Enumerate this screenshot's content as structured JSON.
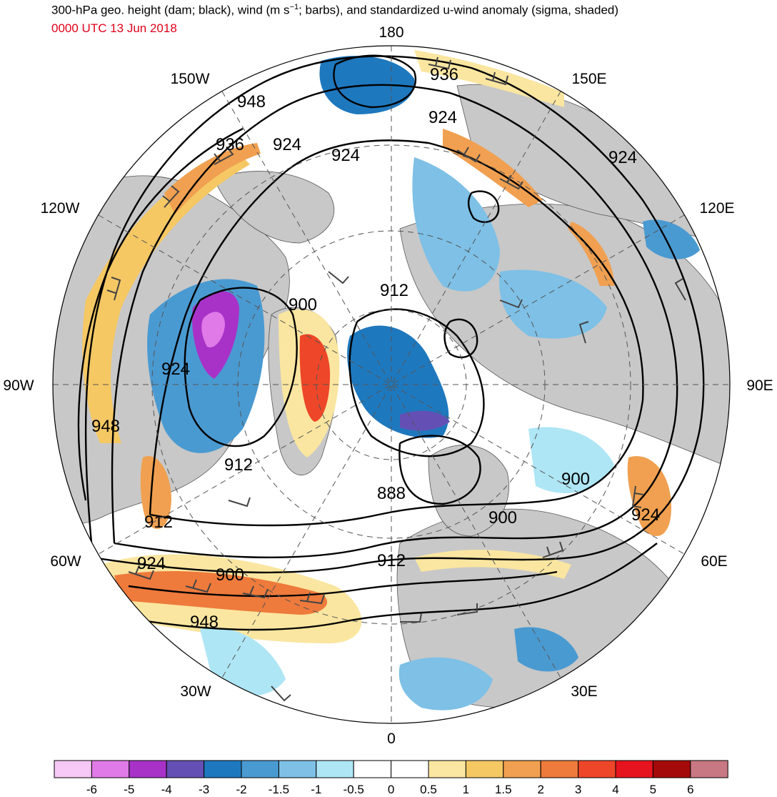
{
  "header": {
    "title_main": "300-hPa geo. height (dam; black), wind (m s",
    "title_sup": "−1",
    "title_tail": "; barbs), and standardized u-wind anomaly (sigma, shaded)",
    "subtitle": "0000 UTC 13 Jun 2018"
  },
  "map": {
    "projection": "north-polar-stereographic",
    "longitude_labels": {
      "n180": "180",
      "e150": "150E",
      "e120": "120E",
      "e90": "90E",
      "e60": "60E",
      "e30": "30E",
      "s0": "0",
      "w30": "30W",
      "w60": "60W",
      "w90": "90W",
      "w120": "120W",
      "w150": "150W"
    },
    "height_labels": {
      "h948a": "948",
      "h936a": "936",
      "h924a": "924",
      "h924b": "924",
      "h936b": "936",
      "h924c": "924",
      "h924d": "924",
      "h900a": "900",
      "h912a": "912",
      "h924e": "924",
      "h948b": "948",
      "h912b": "912",
      "h888": "888",
      "h900b": "900",
      "h900c": "900",
      "h924f": "924",
      "h912c": "912",
      "h912d": "912",
      "h924g": "924",
      "h900d": "900",
      "h948c": "948"
    },
    "colors": {
      "land": "#c8c8c8",
      "ocean": "#ffffff",
      "contour": "#000000",
      "barb": "#444444"
    }
  },
  "colorbar": {
    "labels": [
      "-6",
      "-5",
      "-4",
      "-3",
      "-2",
      "-1.5",
      "-1",
      "-0.5",
      "0",
      "0.5",
      "1",
      "1.5",
      "2",
      "3",
      "4",
      "5",
      "6"
    ],
    "colors": [
      "#f5c8f5",
      "#e07ae8",
      "#a832c8",
      "#6450b4",
      "#1e78be",
      "#4a9ad2",
      "#7ec0e6",
      "#aee6f5",
      "#ffffff",
      "#ffffff",
      "#fae6a0",
      "#f5c864",
      "#f0a050",
      "#ee7a3c",
      "#ee4628",
      "#e6141e",
      "#a50a0a",
      "#c87882"
    ]
  }
}
